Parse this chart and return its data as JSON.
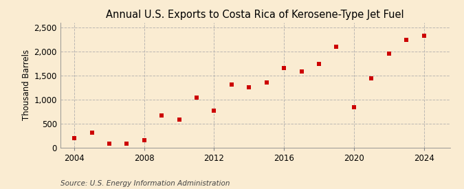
{
  "title": "Annual U.S. Exports to Costa Rica of Kerosene-Type Jet Fuel",
  "ylabel": "Thousand Barrels",
  "source": "Source: U.S. Energy Information Administration",
  "background_color": "#faecd2",
  "plot_bg_color": "#faecd2",
  "marker_color": "#cc0000",
  "marker": "s",
  "marker_size": 4,
  "years": [
    2004,
    2005,
    2006,
    2007,
    2008,
    2009,
    2010,
    2011,
    2012,
    2013,
    2014,
    2015,
    2016,
    2017,
    2018,
    2019,
    2020,
    2021,
    2022,
    2023,
    2024
  ],
  "values": [
    190,
    305,
    75,
    75,
    145,
    660,
    575,
    1035,
    760,
    1305,
    1255,
    1360,
    1660,
    1580,
    1745,
    2095,
    840,
    1435,
    1960,
    2240,
    2330
  ],
  "xlim": [
    2003.2,
    2025.5
  ],
  "ylim": [
    0,
    2600
  ],
  "yticks": [
    0,
    500,
    1000,
    1500,
    2000,
    2500
  ],
  "ytick_labels": [
    "0",
    "500",
    "1,000",
    "1,500",
    "2,000",
    "2,500"
  ],
  "xticks": [
    2004,
    2008,
    2012,
    2016,
    2020,
    2024
  ],
  "grid_color": "#aaaaaa",
  "grid_style": "--",
  "grid_alpha": 0.8,
  "title_fontsize": 10.5,
  "axis_fontsize": 8.5,
  "source_fontsize": 7.5
}
